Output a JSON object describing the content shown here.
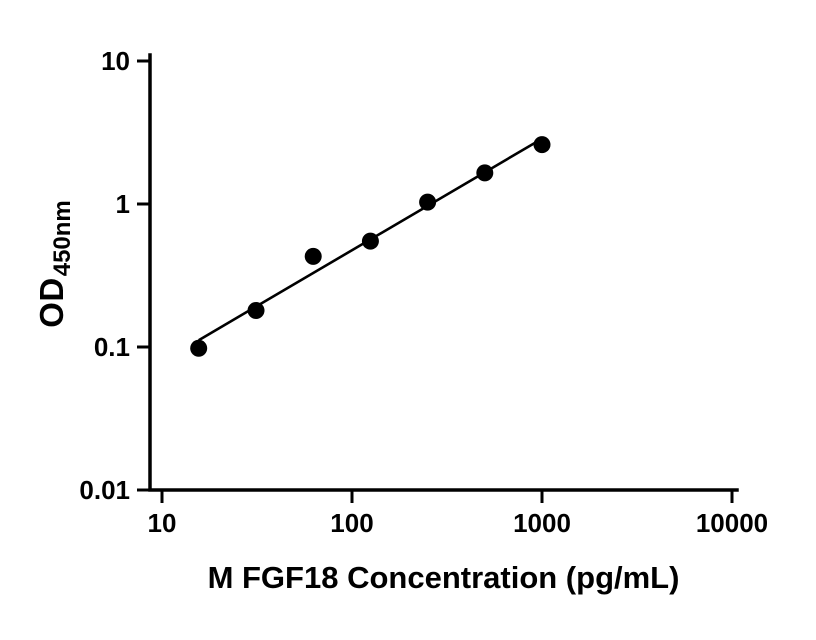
{
  "figure": {
    "background": "#ffffff"
  },
  "chart_data": {
    "type": "scatter",
    "title": "",
    "xlabel": "M FGF18 Concentration (pg/mL)",
    "ylabel": "OD450nm",
    "ylabel_main": "OD",
    "ylabel_sub": "450nm",
    "x_scale": "log",
    "y_scale": "log",
    "xlim": [
      10,
      10000
    ],
    "ylim": [
      0.01,
      10
    ],
    "x_ticks": [
      10,
      100,
      1000,
      10000
    ],
    "x_tick_labels": [
      "10",
      "100",
      "1000",
      "10000"
    ],
    "y_ticks": [
      0.01,
      0.1,
      1,
      10
    ],
    "y_tick_labels": [
      "0.01",
      "0.1",
      "1",
      "10"
    ],
    "x": [
      15.6,
      31.25,
      62.5,
      125,
      250,
      500,
      1000
    ],
    "y": [
      0.098,
      0.18,
      0.43,
      0.55,
      1.03,
      1.65,
      2.6
    ],
    "trendline": "straight fit line on log-log axes from first to last standard",
    "grid": false,
    "legend": null,
    "marker": {
      "shape": "circle",
      "color": "#000000",
      "radius_px": 8.5
    },
    "line_color": "#000000",
    "axis_color": "#000000"
  }
}
